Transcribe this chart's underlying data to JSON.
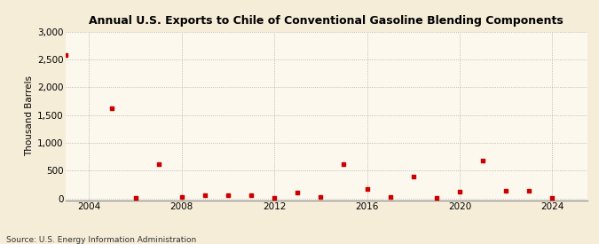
{
  "title": "Annual U.S. Exports to Chile of Conventional Gasoline Blending Components",
  "ylabel": "Thousand Barrels",
  "source": "Source: U.S. Energy Information Administration",
  "background_color": "#f5edd8",
  "plot_background_color": "#fdf8ee",
  "marker_color": "#cc0000",
  "xlim": [
    2003.0,
    2025.5
  ],
  "ylim": [
    -30,
    3000
  ],
  "yticks": [
    0,
    500,
    1000,
    1500,
    2000,
    2500,
    3000
  ],
  "xticks": [
    2004,
    2008,
    2012,
    2016,
    2020,
    2024
  ],
  "data": {
    "2003": 2580,
    "2005": 1620,
    "2006": 10,
    "2007": 620,
    "2008": 25,
    "2009": 55,
    "2010": 60,
    "2011": 55,
    "2012": 10,
    "2013": 100,
    "2014": 20,
    "2015": 620,
    "2016": 175,
    "2017": 30,
    "2018": 390,
    "2019": 10,
    "2020": 120,
    "2021": 680,
    "2022": 135,
    "2023": 145,
    "2024": 15
  }
}
